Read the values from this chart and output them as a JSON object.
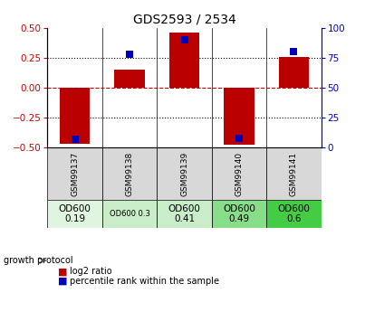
{
  "title": "GDS2593 / 2534",
  "samples": [
    "GSM99137",
    "GSM99138",
    "GSM99139",
    "GSM99140",
    "GSM99141"
  ],
  "log2_ratio": [
    -0.47,
    0.15,
    0.46,
    -0.48,
    0.26
  ],
  "percentile_rank": [
    7,
    78,
    90,
    8,
    80
  ],
  "ylim_left": [
    -0.5,
    0.5
  ],
  "ylim_right": [
    0,
    100
  ],
  "yticks_left": [
    -0.5,
    -0.25,
    0,
    0.25,
    0.5
  ],
  "yticks_right": [
    0,
    25,
    50,
    75,
    100
  ],
  "bar_color": "#bb0000",
  "dot_color": "#0000bb",
  "bar_width": 0.55,
  "dot_size": 40,
  "protocol_labels": [
    "OD600\n0.19",
    "OD600 0.3",
    "OD600\n0.41",
    "OD600\n0.49",
    "OD600\n0.6"
  ],
  "protocol_fontsize": [
    7.5,
    6.0,
    7.5,
    7.5,
    7.5
  ],
  "protocol_colors": [
    "#dff5df",
    "#c8edc8",
    "#c8edc8",
    "#88dd88",
    "#44cc44"
  ],
  "sample_bg_color": "#d8d8d8",
  "left_axis_color": "#cc0000",
  "right_axis_color": "#0000cc",
  "zero_line_color": "#cc0000",
  "fig_width": 4.03,
  "fig_height": 3.45,
  "dpi": 100
}
